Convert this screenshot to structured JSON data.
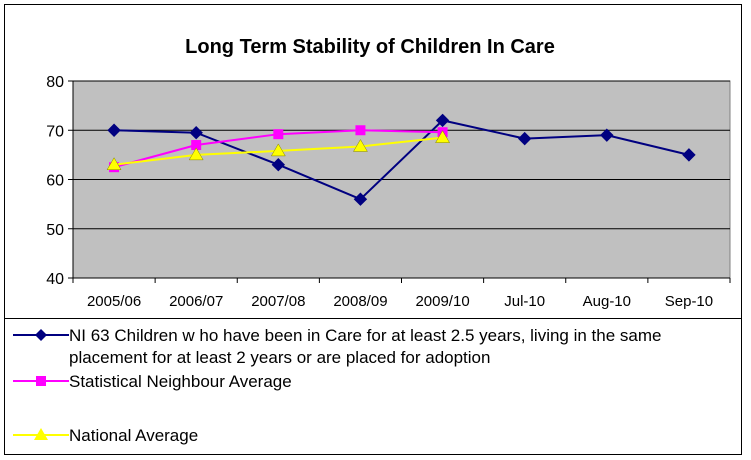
{
  "chart_data": {
    "type": "line",
    "title": "Long Term Stability of Children In Care",
    "categories": [
      "2005/06",
      "2006/07",
      "2007/08",
      "2008/09",
      "2009/10",
      "Jul-10",
      "Aug-10",
      "Sep-10"
    ],
    "ylim": [
      40,
      80
    ],
    "yticks": [
      40,
      50,
      60,
      70,
      80
    ],
    "grid": true,
    "legend_position": "bottom",
    "series": [
      {
        "name": "NI 63 Children w ho have been in Care for at least 2.5 years, living in the same placement for at least 2 years or are placed for adoption",
        "color": "#000080",
        "marker": "diamond",
        "values": [
          70,
          69.5,
          63,
          56,
          72,
          68.3,
          69,
          65
        ]
      },
      {
        "name": "Statistical Neighbour Average",
        "color": "#ff00ff",
        "marker": "square",
        "values": [
          62.5,
          67,
          69.2,
          70,
          69.6,
          null,
          null,
          null
        ]
      },
      {
        "name": "National Average",
        "color": "#ffff00",
        "marker": "triangle",
        "values": [
          63,
          65,
          65.8,
          66.7,
          68.5,
          null,
          null,
          null
        ]
      }
    ],
    "plot_background": "#c0c0c0"
  }
}
